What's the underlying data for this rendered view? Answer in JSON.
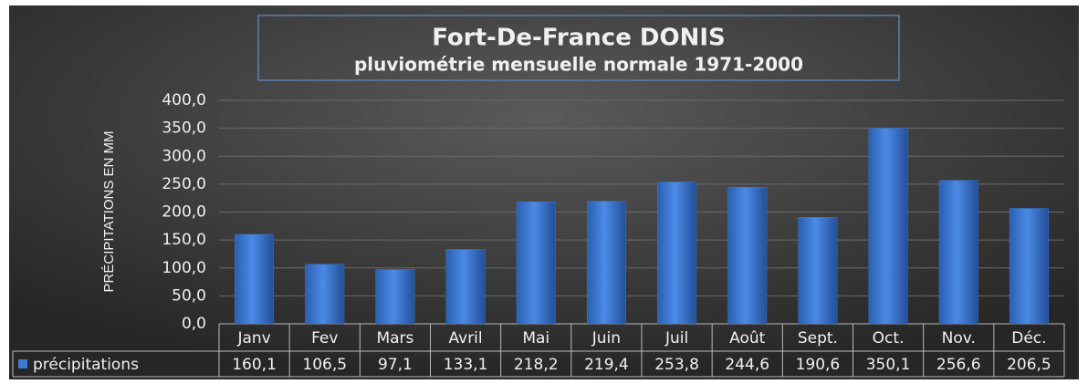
{
  "chart_data": {
    "type": "bar",
    "title": "Fort-De-France DONIS",
    "subtitle": "pluviométrie mensuelle normale 1971-2000",
    "y_label": "PRÉCIPITATIONS EN MM",
    "categories": [
      "Janv",
      "Fev",
      "Mars",
      "Avril",
      "Mai",
      "Juin",
      "Juil",
      "Août",
      "Sept.",
      "Oct.",
      "Nov.",
      "Déc."
    ],
    "series": [
      {
        "name": "précipitations",
        "color": "#3a7bd5",
        "values": [
          160.1,
          106.5,
          97.1,
          133.1,
          218.2,
          219.4,
          253.8,
          244.6,
          190.6,
          350.1,
          256.6,
          206.5
        ],
        "value_labels": [
          "160,1",
          "106,5",
          "97,1",
          "133,1",
          "218,2",
          "219,4",
          "253,8",
          "244,6",
          "190,6",
          "350,1",
          "256,6",
          "206,5"
        ]
      }
    ],
    "ylim": [
      0,
      400
    ],
    "yticks": [
      {
        "value": 0,
        "label": "0,0"
      },
      {
        "value": 50,
        "label": "50,0"
      },
      {
        "value": 100,
        "label": "100,0"
      },
      {
        "value": 150,
        "label": "150,0"
      },
      {
        "value": 200,
        "label": "200,0"
      },
      {
        "value": 250,
        "label": "250,0"
      },
      {
        "value": 300,
        "label": "300,0"
      },
      {
        "value": 350,
        "label": "350,0"
      },
      {
        "value": 400,
        "label": "400,0"
      }
    ],
    "grid": true
  }
}
